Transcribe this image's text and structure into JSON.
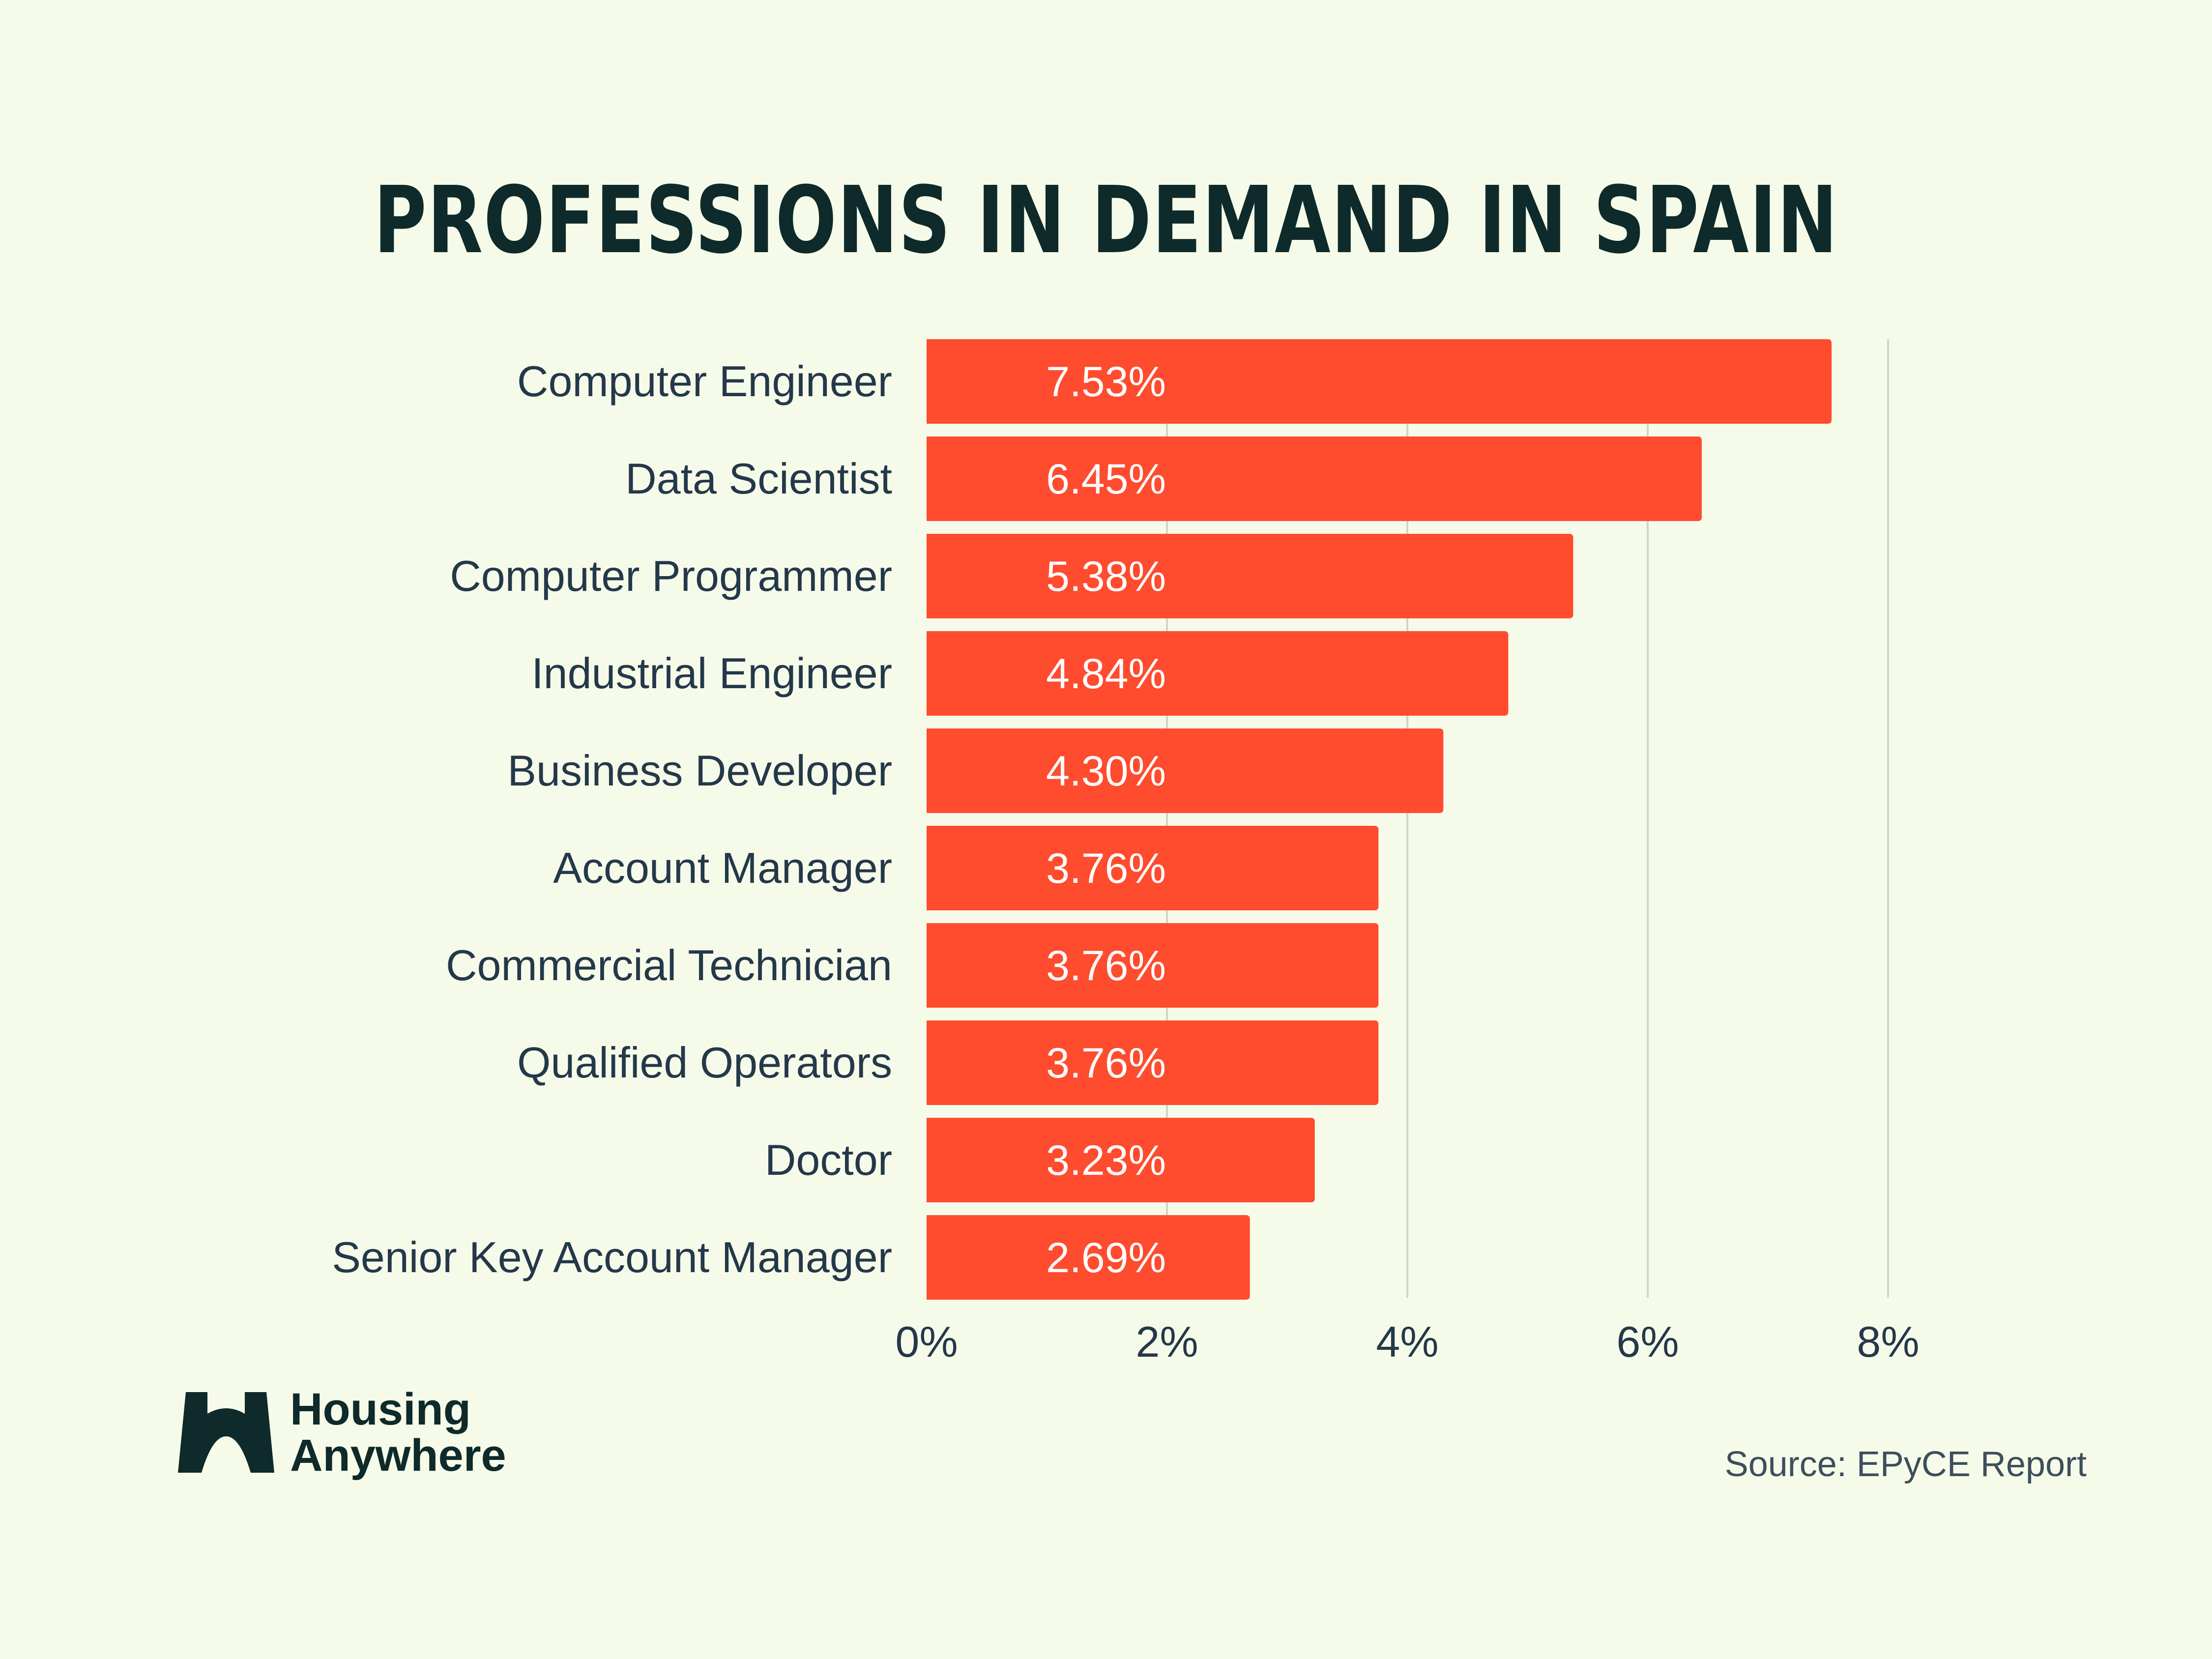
{
  "title": "PROFESSIONS IN DEMAND IN SPAIN",
  "source": "Source: EPyCE Report",
  "logo": {
    "line1": "Housing",
    "line2": "Anywhere",
    "icon": "housing-anywhere-logo-icon"
  },
  "colors": {
    "background": "#f6fbe9",
    "bar": "#ff4b2e",
    "text": "#24384a",
    "title": "#0e2a2a",
    "grid": "#cfd6c6"
  },
  "chart_data": {
    "type": "bar",
    "orientation": "horizontal",
    "title": "PROFESSIONS IN DEMAND IN SPAIN",
    "xlabel": "",
    "ylabel": "",
    "xlim": [
      0,
      8
    ],
    "ticks": [
      0,
      2,
      4,
      6,
      8
    ],
    "tick_labels": [
      "0%",
      "2%",
      "4%",
      "6%",
      "8%"
    ],
    "grid": "vertical",
    "categories": [
      "Computer Engineer",
      "Data Scientist",
      "Computer Programmer",
      "Industrial Engineer",
      "Business Developer",
      "Account Manager",
      "Commercial Technician",
      "Qualified Operators",
      "Doctor",
      "Senior Key Account Manager"
    ],
    "values": [
      7.53,
      6.45,
      5.38,
      4.84,
      4.3,
      3.76,
      3.76,
      3.76,
      3.23,
      2.69
    ],
    "value_labels": [
      "7.53%",
      "6.45%",
      "5.38%",
      "4.84%",
      "4.30%",
      "3.76%",
      "3.76%",
      "3.76%",
      "3.23%",
      "2.69%"
    ]
  }
}
